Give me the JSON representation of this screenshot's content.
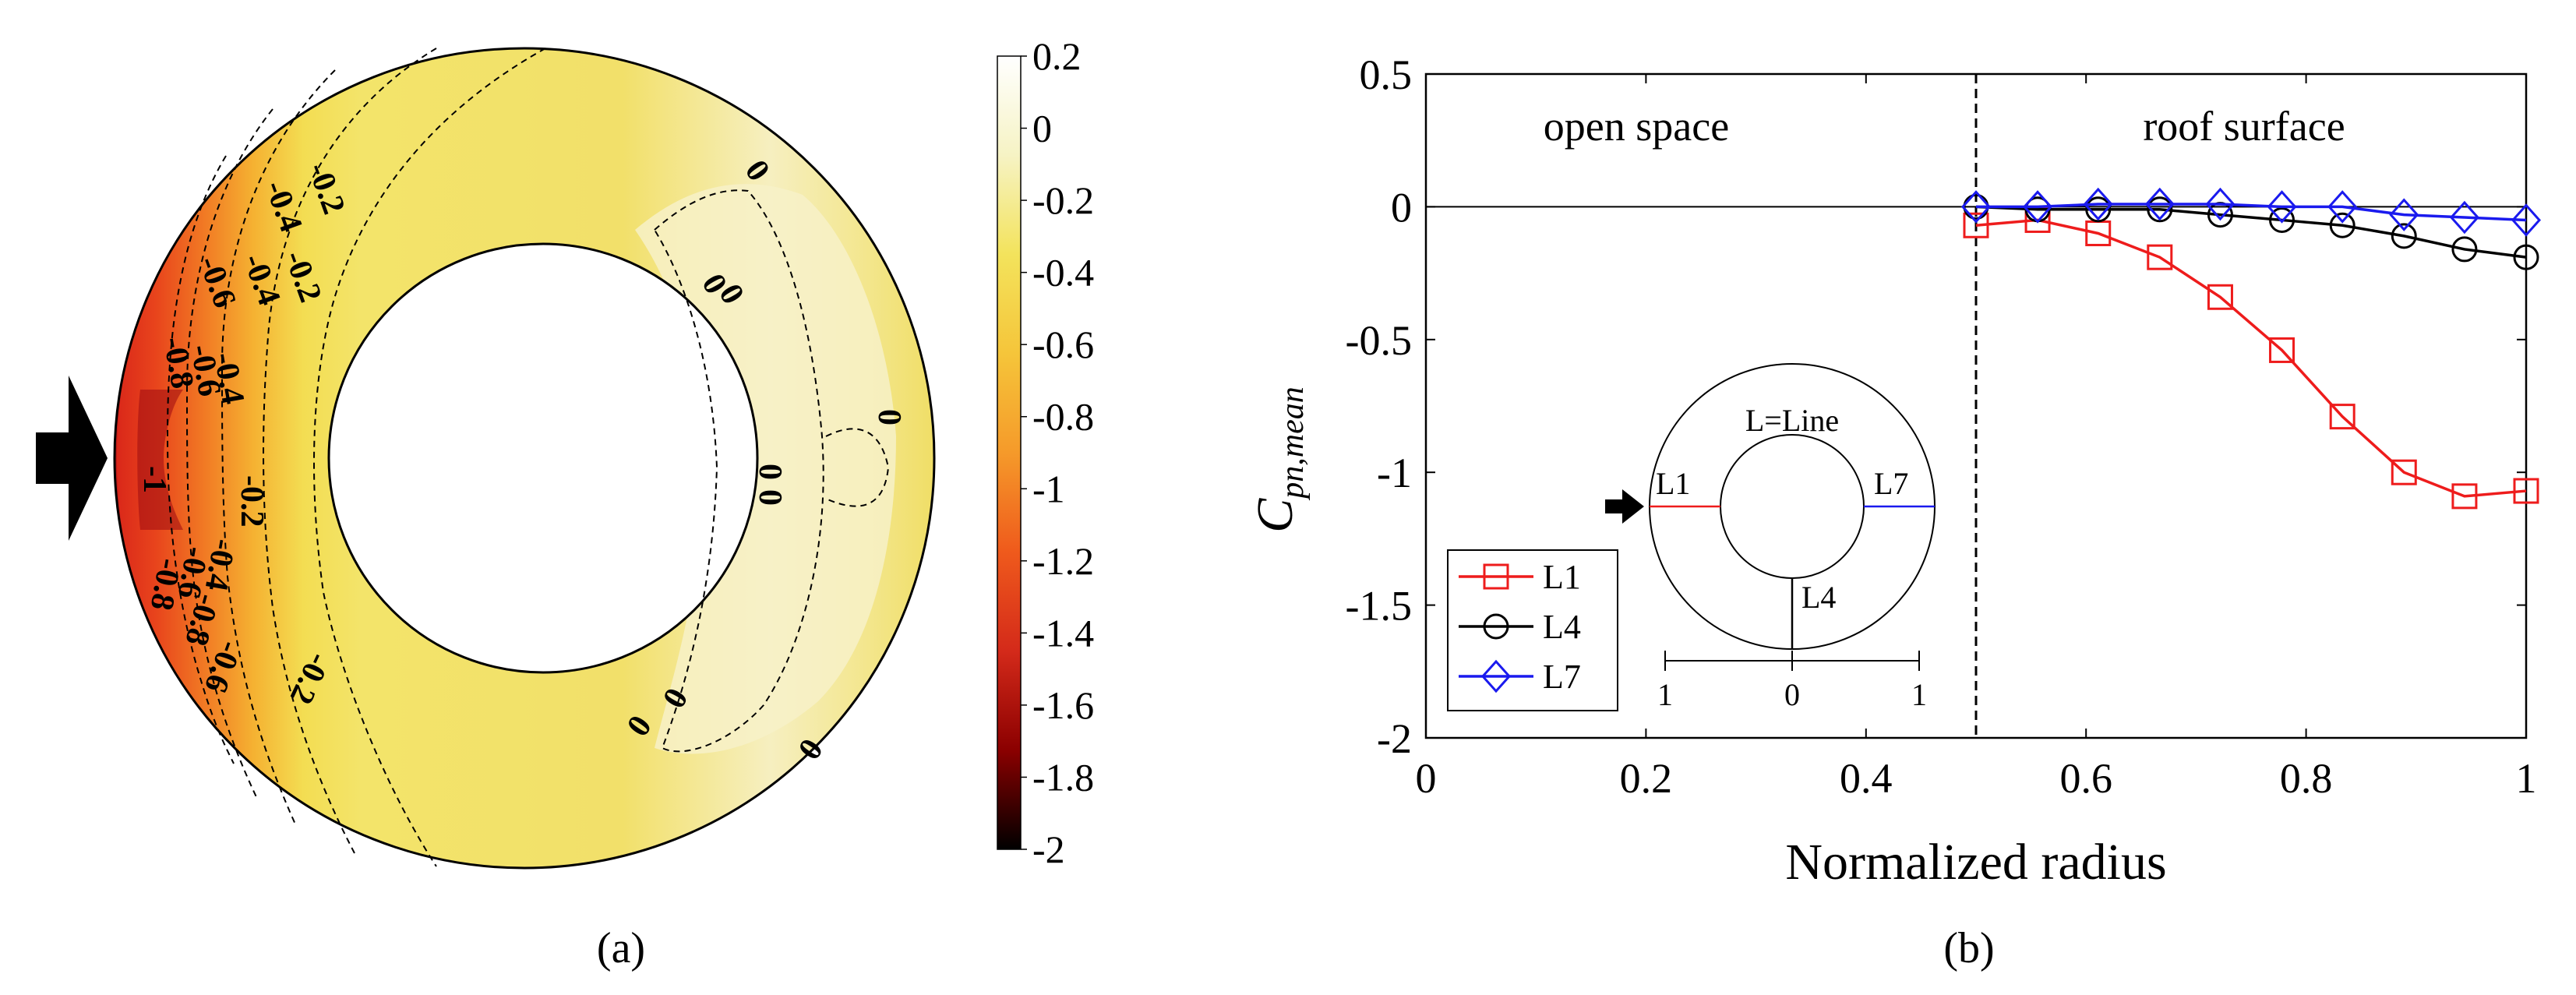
{
  "panel_a": {
    "caption": "(a)",
    "colorbar": {
      "min": -2,
      "max": 0.2,
      "ticks": [
        "0.2",
        "0",
        "-0.2",
        "-0.4",
        "-0.6",
        "-0.8",
        "-1",
        "-1.2",
        "-1.4",
        "-1.6",
        "-1.8",
        "-2"
      ],
      "colors": [
        "#000000",
        "#8b0000",
        "#d42a1a",
        "#ef5a1c",
        "#f59a2a",
        "#f5c53a",
        "#f3e35c",
        "#f6f3c4",
        "#ffffff"
      ]
    },
    "contour_labels": [
      {
        "text": "-0.2"
      },
      {
        "text": "-0.4"
      },
      {
        "text": "-0.2"
      },
      {
        "text": "-0.6"
      },
      {
        "text": "-0.4"
      },
      {
        "text": "-0.8"
      },
      {
        "text": "-0.6"
      },
      {
        "text": "-0.4"
      },
      {
        "text": "-1"
      },
      {
        "text": "-0.2"
      },
      {
        "text": "-0.4"
      },
      {
        "text": "-0.6"
      },
      {
        "text": "-0.8"
      },
      {
        "text": "-0.6"
      },
      {
        "text": "-0.8"
      },
      {
        "text": "-0.2"
      },
      {
        "text": "0"
      },
      {
        "text": "0"
      },
      {
        "text": "0"
      },
      {
        "text": "0"
      },
      {
        "text": "0"
      },
      {
        "text": "0"
      },
      {
        "text": "0"
      },
      {
        "text": "0"
      },
      {
        "text": "0"
      }
    ]
  },
  "chart_data": {
    "type": "line",
    "caption": "(b)",
    "xlabel": "Normalized radius",
    "ylabel_main": "C",
    "ylabel_sub": "pn,mean",
    "xlim": [
      0,
      1
    ],
    "ylim": [
      -2,
      0.5
    ],
    "xticks": [
      "0",
      "0.2",
      "0.4",
      "0.6",
      "0.8",
      "1"
    ],
    "yticks": [
      "0.5",
      "0",
      "-0.5",
      "-1",
      "-1.5",
      "-2"
    ],
    "divider_x": 0.5,
    "regions": [
      "open space",
      "roof surface"
    ],
    "x": [
      0.5,
      0.556,
      0.611,
      0.667,
      0.722,
      0.778,
      0.833,
      0.889,
      0.944,
      1.0
    ],
    "series": [
      {
        "name": "L1",
        "color": "#ee1c1c",
        "marker": "square",
        "values": [
          -0.07,
          -0.05,
          -0.1,
          -0.19,
          -0.34,
          -0.54,
          -0.79,
          -1.0,
          -1.09,
          -1.07
        ]
      },
      {
        "name": "L4",
        "color": "#000000",
        "marker": "circle",
        "values": [
          0.0,
          -0.01,
          -0.01,
          -0.01,
          -0.03,
          -0.05,
          -0.07,
          -0.11,
          -0.16,
          -0.19
        ]
      },
      {
        "name": "L7",
        "color": "#1a1aee",
        "marker": "diamond",
        "values": [
          0.0,
          0.0,
          0.01,
          0.01,
          0.01,
          0.0,
          0.0,
          -0.03,
          -0.04,
          -0.05
        ]
      }
    ],
    "inset": {
      "title": "L=Line",
      "labels": [
        "L1",
        "L7",
        "L4"
      ],
      "scale_ticks": [
        "1",
        "0",
        "1"
      ]
    }
  }
}
